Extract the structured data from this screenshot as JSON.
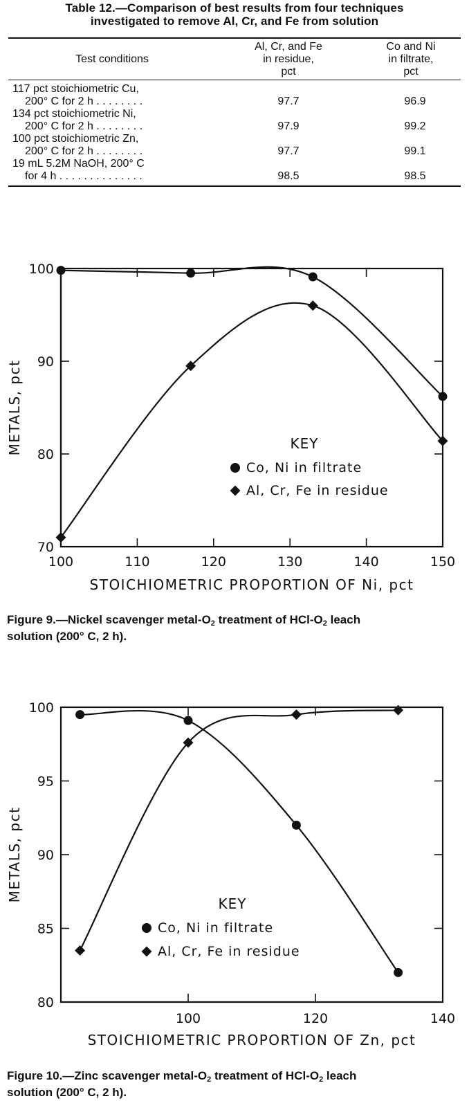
{
  "table": {
    "caption_line1": "Table 12.—Comparison of best results from four techniques",
    "caption_line2": "investigated to remove Al, Cr, and Fe from solution",
    "headers": {
      "conditions": "Test conditions",
      "residue": [
        "Al, Cr, and Fe",
        "in residue,",
        "pct"
      ],
      "filtrate": [
        "Co and Ni",
        "in filtrate,",
        "pct"
      ]
    },
    "rows": [
      {
        "cond1": "117 pct stoichiometric Cu,",
        "cond2": "200° C for 2 h . . . . . . . .",
        "residue": "97.7",
        "filtrate": "96.9"
      },
      {
        "cond1": "134 pct stoichiometric Ni,",
        "cond2": "200° C for 2 h . . . . . . . .",
        "residue": "97.9",
        "filtrate": "99.2"
      },
      {
        "cond1": "100 pct stoichiometric Zn,",
        "cond2": "200° C for 2 h . . . . . . . .",
        "residue": "97.7",
        "filtrate": "99.1"
      },
      {
        "cond1": "19 mL 5.2M NaOH, 200° C",
        "cond2": "for 4 h . . . . . . . . . . . . . .",
        "residue": "98.5",
        "filtrate": "98.5"
      }
    ]
  },
  "figure9": {
    "caption_a": "Figure 9.—Nickel scavenger metal-O",
    "caption_b": " treatment of HCl-O",
    "caption_c": " leach",
    "caption_line2": "solution (200° C, 2 h).",
    "subscript": "2"
  },
  "figure10": {
    "caption_a": "Figure 10.—Zinc scavenger metal-O",
    "caption_b": " treatment of HCl-O",
    "caption_c": " leach",
    "caption_line2": "solution (200° C, 2 h).",
    "subscript": "2"
  },
  "chart_data": [
    {
      "type": "line",
      "xlabel": "STOICHIOMETRIC PROPORTION OF Ni, pct",
      "ylabel": "METALS, pct",
      "xlim": [
        100,
        150
      ],
      "ylim": [
        70,
        100
      ],
      "xticks": [
        100,
        110,
        120,
        130,
        140,
        150
      ],
      "xtick_labels": [
        "100",
        "110",
        "120",
        "130",
        "140",
        "150"
      ],
      "yticks": [
        70,
        80,
        90,
        100
      ],
      "ytick_labels": [
        "70",
        "80",
        "90",
        "100"
      ],
      "grid": false,
      "legend_title": "KEY",
      "legend_position": "lower-right",
      "series": [
        {
          "name": "Co, Ni in filtrate",
          "marker": "circle",
          "x": [
            100,
            117,
            133,
            150
          ],
          "y": [
            99.8,
            99.5,
            99.1,
            86.2
          ]
        },
        {
          "name": "Al, Cr, Fe in residue",
          "marker": "diamond",
          "x": [
            100,
            117,
            133,
            150
          ],
          "y": [
            71.0,
            89.5,
            96.0,
            81.4
          ]
        }
      ]
    },
    {
      "type": "line",
      "xlabel": "STOICHIOMETRIC PROPORTION OF Zn, pct",
      "ylabel": "METALS, pct",
      "xlim": [
        80,
        140
      ],
      "ylim": [
        80,
        100
      ],
      "xticks": [
        100,
        120,
        140
      ],
      "xtick_labels": [
        "100",
        "120",
        "140"
      ],
      "yticks": [
        80,
        85,
        90,
        95,
        100
      ],
      "ytick_labels": [
        "80",
        "85",
        "90",
        "95",
        "100"
      ],
      "grid": false,
      "legend_title": "KEY",
      "legend_position": "lower-center",
      "series": [
        {
          "name": "Co, Ni in filtrate",
          "marker": "circle",
          "x": [
            83,
            100,
            117,
            133
          ],
          "y": [
            99.5,
            99.1,
            92.0,
            82.0
          ]
        },
        {
          "name": "Al, Cr, Fe in residue",
          "marker": "diamond",
          "x": [
            83,
            100,
            117,
            133
          ],
          "y": [
            83.5,
            97.6,
            99.5,
            99.8
          ]
        }
      ]
    }
  ]
}
